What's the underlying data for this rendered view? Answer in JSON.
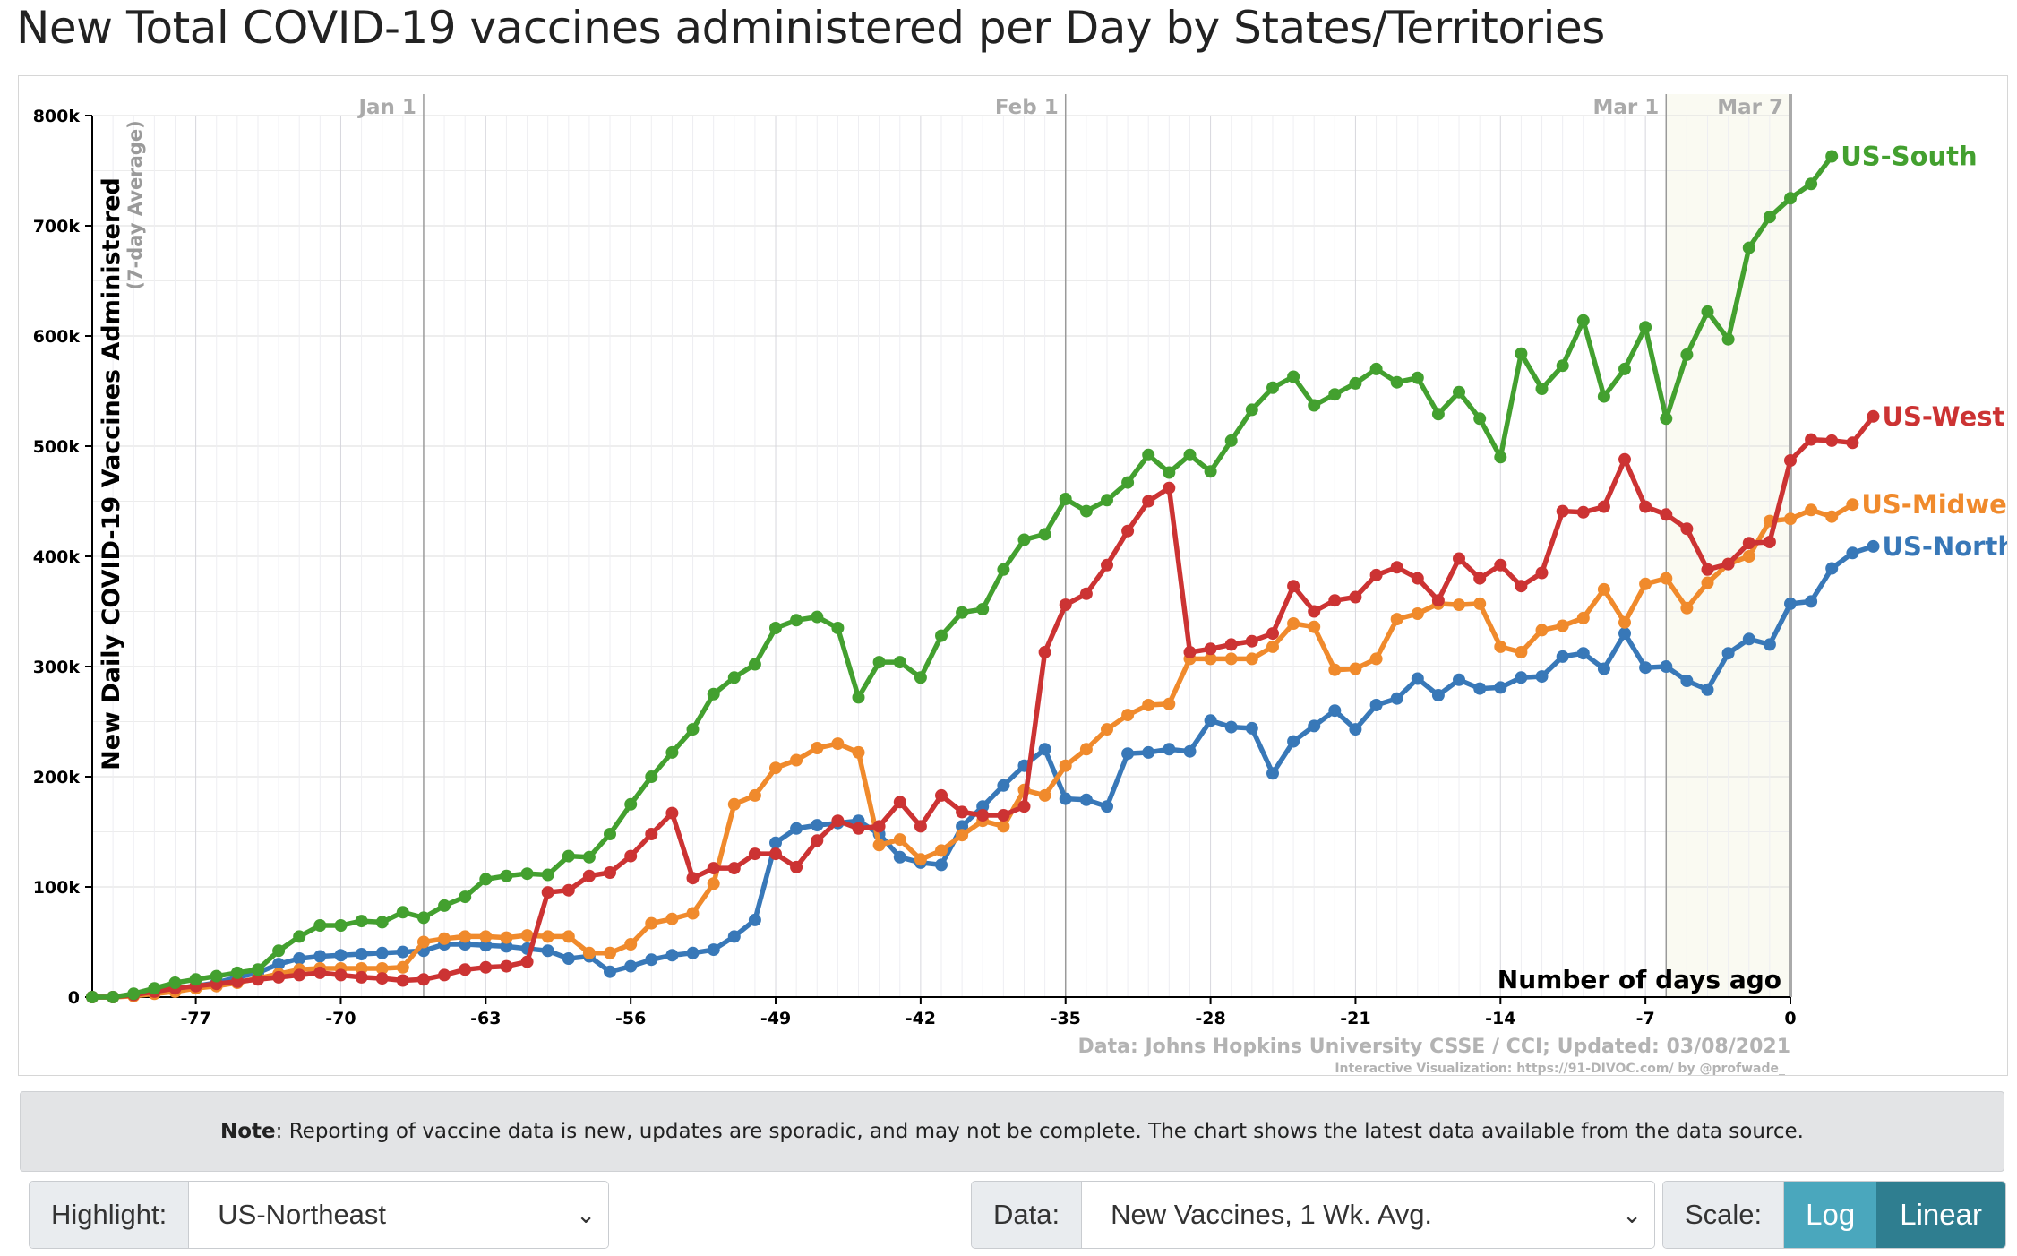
{
  "title": "New Total COVID-19 vaccines administered per Day by States/Territories",
  "chart_data": {
    "type": "line",
    "title": "New Total COVID-19 vaccines administered per Day by States/Territories",
    "ylabel": "New Daily COVID-19 Vaccines Administered",
    "ylabel_sub": "(7-day Average)",
    "xlabel": "Number of days ago",
    "xlim": [
      -82,
      0
    ],
    "ylim": [
      0,
      800000
    ],
    "y_ticks": [
      0,
      100000,
      200000,
      300000,
      400000,
      500000,
      600000,
      700000,
      800000
    ],
    "y_tick_labels": [
      "0",
      "100k",
      "200k",
      "300k",
      "400k",
      "500k",
      "600k",
      "700k",
      "800k"
    ],
    "x_ticks": [
      -77,
      -70,
      -63,
      -56,
      -49,
      -42,
      -35,
      -28,
      -21,
      -14,
      -7,
      0
    ],
    "x_tick_labels": [
      "-77",
      "-70",
      "-63",
      "-56",
      "-49",
      "-42",
      "-35",
      "-28",
      "-21",
      "-14",
      "-7",
      "0"
    ],
    "date_markers": [
      {
        "label": "Jan 1",
        "x": -66
      },
      {
        "label": "Feb 1",
        "x": -35
      },
      {
        "label": "Mar 1",
        "x": -6
      },
      {
        "label": "Mar 7",
        "x": 0
      }
    ],
    "grid": true,
    "x_start": -82,
    "series": [
      {
        "name": "US-South",
        "color": "#43a02f",
        "values": [
          0,
          0,
          3000,
          8000,
          13000,
          16000,
          19000,
          22000,
          25000,
          42000,
          55000,
          65000,
          65000,
          69000,
          68000,
          77000,
          72000,
          83000,
          91000,
          107000,
          110000,
          112000,
          111000,
          128000,
          127000,
          148000,
          175000,
          200000,
          222000,
          243000,
          275000,
          290000,
          302000,
          335000,
          342000,
          345000,
          335000,
          272000,
          304000,
          304000,
          290000,
          328000,
          349000,
          352000,
          388000,
          415000,
          420000,
          452000,
          441000,
          451000,
          467000,
          492000,
          476000,
          492000,
          477000,
          505000,
          533000,
          553000,
          563000,
          537000,
          547000,
          557000,
          570000,
          558000,
          562000,
          529000,
          549000,
          525000,
          490000,
          584000,
          552000,
          573000,
          614000,
          545000,
          570000,
          608000,
          525000,
          583000,
          622000,
          597000,
          680000,
          708000,
          725000,
          738000,
          763000
        ]
      },
      {
        "name": "US-West",
        "color": "#cc3333",
        "values": [
          0,
          0,
          2000,
          5000,
          8000,
          10000,
          12000,
          14000,
          16000,
          18000,
          20000,
          22000,
          20000,
          18000,
          17000,
          15000,
          16000,
          20000,
          25000,
          27000,
          28000,
          32000,
          95000,
          97000,
          110000,
          113000,
          128000,
          148000,
          167000,
          108000,
          117000,
          117000,
          130000,
          130000,
          118000,
          142000,
          160000,
          153000,
          155000,
          177000,
          155000,
          183000,
          168000,
          165000,
          165000,
          173000,
          313000,
          356000,
          366000,
          392000,
          423000,
          450000,
          462000,
          313000,
          316000,
          320000,
          323000,
          330000,
          373000,
          350000,
          360000,
          363000,
          383000,
          390000,
          380000,
          360000,
          398000,
          380000,
          392000,
          373000,
          385000,
          441000,
          440000,
          445000,
          488000,
          445000,
          438000,
          425000,
          388000,
          393000,
          412000,
          413000,
          487000,
          506000,
          505000,
          503000,
          527000
        ]
      },
      {
        "name": "US-Midwest",
        "color": "#f08a2c",
        "values": [
          0,
          0,
          1000,
          3000,
          5000,
          8000,
          10000,
          13000,
          17000,
          21000,
          25000,
          26000,
          26000,
          26000,
          26000,
          27000,
          50000,
          53000,
          55000,
          55000,
          54000,
          56000,
          55000,
          55000,
          40000,
          40000,
          48000,
          67000,
          71000,
          76000,
          103000,
          175000,
          183000,
          208000,
          215000,
          226000,
          230000,
          222000,
          138000,
          143000,
          125000,
          133000,
          147000,
          160000,
          155000,
          188000,
          183000,
          210000,
          225000,
          243000,
          256000,
          265000,
          266000,
          307000,
          307000,
          307000,
          307000,
          318000,
          339000,
          336000,
          297000,
          298000,
          307000,
          343000,
          348000,
          357000,
          356000,
          357000,
          318000,
          313000,
          333000,
          337000,
          344000,
          370000,
          340000,
          375000,
          380000,
          353000,
          376000,
          393000,
          400000,
          432000,
          434000,
          442000,
          436000,
          447000
        ]
      },
      {
        "name": "US-Northeast",
        "color": "#3878b8",
        "values": [
          0,
          0,
          2000,
          5000,
          8000,
          10000,
          13000,
          18000,
          22000,
          30000,
          35000,
          37000,
          38000,
          39000,
          40000,
          41000,
          42000,
          48000,
          48000,
          47000,
          46000,
          44000,
          42000,
          35000,
          37000,
          23000,
          28000,
          34000,
          38000,
          40000,
          43000,
          55000,
          70000,
          140000,
          153000,
          156000,
          158000,
          160000,
          148000,
          127000,
          122000,
          120000,
          155000,
          173000,
          192000,
          210000,
          225000,
          180000,
          179000,
          173000,
          221000,
          222000,
          225000,
          223000,
          251000,
          245000,
          244000,
          203000,
          232000,
          246000,
          260000,
          243000,
          265000,
          271000,
          289000,
          274000,
          288000,
          280000,
          281000,
          290000,
          291000,
          309000,
          312000,
          298000,
          330000,
          299000,
          300000,
          287000,
          279000,
          312000,
          325000,
          320000,
          357000,
          359000,
          389000,
          403000,
          409000
        ]
      }
    ]
  },
  "watermark": {
    "source": "Data: Johns Hopkins University CSSE / CCI; Updated: 03/08/2021",
    "credit": "Interactive Visualization: https://91-DIVOC.com/ by @profwade_"
  },
  "note": {
    "bold": "Note",
    "text": ": Reporting of vaccine data is new, updates are sporadic, and may not be complete. The chart shows the latest data available from the data source."
  },
  "controls": {
    "highlight_label": "Highlight:",
    "highlight_value": "US-Northeast",
    "data_label": "Data:",
    "data_value": "New Vaccines, 1 Wk. Avg.",
    "scale_label": "Scale:",
    "scale_log": "Log",
    "scale_linear": "Linear",
    "colors": {
      "log": "#4aa7bd",
      "linear": "#2f7e90"
    }
  }
}
